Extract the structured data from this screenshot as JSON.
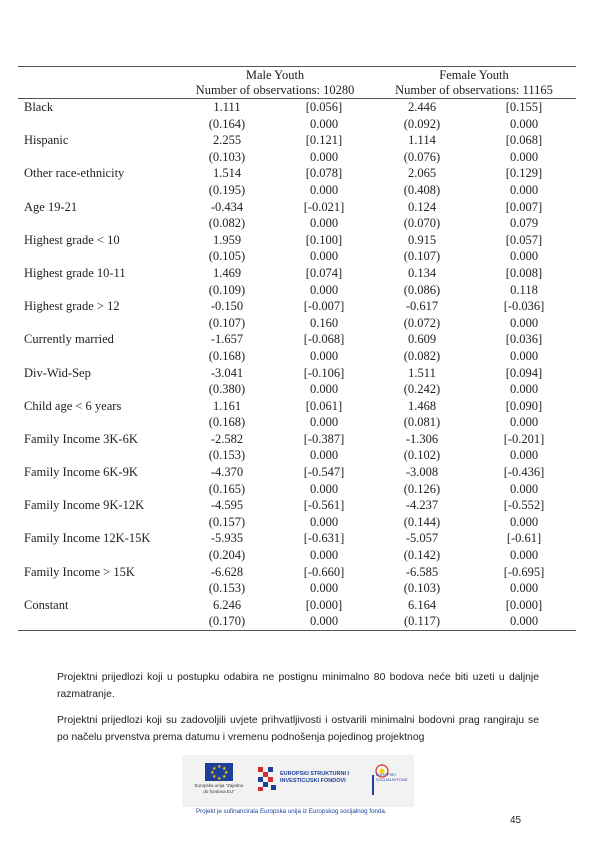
{
  "table": {
    "group_male": "Male Youth",
    "group_female": "Female Youth",
    "obs_male": "Number of observations: 10280",
    "obs_female": "Number of observations: 11165",
    "rows": [
      {
        "label": "Black",
        "m1": "1.111",
        "m2": "[0.056]",
        "f1": "2.446",
        "f2": "[0.155]"
      },
      {
        "label": "",
        "m1": "(0.164)",
        "m2": "0.000",
        "f1": "(0.092)",
        "f2": "0.000"
      },
      {
        "label": "Hispanic",
        "m1": "2.255",
        "m2": "[0.121]",
        "f1": "1.114",
        "f2": "[0.068]"
      },
      {
        "label": "",
        "m1": "(0.103)",
        "m2": "0.000",
        "f1": "(0.076)",
        "f2": "0.000"
      },
      {
        "label": "Other race-ethnicity",
        "m1": "1.514",
        "m2": "[0.078]",
        "f1": "2.065",
        "f2": "[0.129]"
      },
      {
        "label": "",
        "m1": "(0.195)",
        "m2": "0.000",
        "f1": "(0.408)",
        "f2": "0.000"
      },
      {
        "label": "Age 19-21",
        "m1": "-0.434",
        "m2": "[-0.021]",
        "f1": "0.124",
        "f2": "[0.007]"
      },
      {
        "label": "",
        "m1": "(0.082)",
        "m2": "0.000",
        "f1": "(0.070)",
        "f2": "0.079"
      },
      {
        "label": "Highest grade < 10",
        "m1": "1.959",
        "m2": "[0.100]",
        "f1": "0.915",
        "f2": "[0.057]"
      },
      {
        "label": "",
        "m1": "(0.105)",
        "m2": "0.000",
        "f1": "(0.107)",
        "f2": "0.000"
      },
      {
        "label": "Highest grade 10-11",
        "m1": "1.469",
        "m2": "[0.074]",
        "f1": "0.134",
        "f2": "[0.008]"
      },
      {
        "label": "",
        "m1": "(0.109)",
        "m2": "0.000",
        "f1": "(0.086)",
        "f2": "0.118"
      },
      {
        "label": "Highest grade > 12",
        "m1": "-0.150",
        "m2": "[-0.007]",
        "f1": "-0.617",
        "f2": "[-0.036]"
      },
      {
        "label": "",
        "m1": "(0.107)",
        "m2": "0.160",
        "f1": "(0.072)",
        "f2": "0.000"
      },
      {
        "label": "Currently married",
        "m1": "-1.657",
        "m2": "[-0.068]",
        "f1": "0.609",
        "f2": "[0.036]"
      },
      {
        "label": "",
        "m1": "(0.168)",
        "m2": "0.000",
        "f1": "(0.082)",
        "f2": "0.000"
      },
      {
        "label": "Div-Wid-Sep",
        "m1": "-3.041",
        "m2": "[-0.106]",
        "f1": "1.511",
        "f2": "[0.094]"
      },
      {
        "label": "",
        "m1": "(0.380)",
        "m2": "0.000",
        "f1": "(0.242)",
        "f2": "0.000"
      },
      {
        "label": "Child age < 6 years",
        "m1": "1.161",
        "m2": "[0.061]",
        "f1": "1.468",
        "f2": "[0.090]"
      },
      {
        "label": "",
        "m1": "(0.168)",
        "m2": "0.000",
        "f1": "(0.081)",
        "f2": "0.000"
      },
      {
        "label": "Family Income 3K-6K",
        "m1": "-2.582",
        "m2": "[-0.387]",
        "f1": "-1.306",
        "f2": "[-0.201]"
      },
      {
        "label": "",
        "m1": "(0.153)",
        "m2": "0.000",
        "f1": "(0.102)",
        "f2": "0.000"
      },
      {
        "label": "Family Income 6K-9K",
        "m1": "-4.370",
        "m2": "[-0.547]",
        "f1": "-3.008",
        "f2": "[-0.436]"
      },
      {
        "label": "",
        "m1": "(0.165)",
        "m2": "0.000",
        "f1": "(0.126)",
        "f2": "0.000"
      },
      {
        "label": "Family Income 9K-12K",
        "m1": "-4.595",
        "m2": "[-0.561]",
        "f1": "-4.237",
        "f2": "[-0.552]"
      },
      {
        "label": "",
        "m1": "(0.157)",
        "m2": "0.000",
        "f1": "(0.144)",
        "f2": "0.000"
      },
      {
        "label": "Family Income 12K-15K",
        "m1": "-5.935",
        "m2": "[-0.631]",
        "f1": "-5.057",
        "f2": "[-0.61]"
      },
      {
        "label": "",
        "m1": "(0.204)",
        "m2": "0.000",
        "f1": "(0.142)",
        "f2": "0.000"
      },
      {
        "label": "Family Income > 15K",
        "m1": "-6.628",
        "m2": "[-0.660]",
        "f1": "-6.585",
        "f2": "[-0.695]"
      },
      {
        "label": "",
        "m1": "(0.153)",
        "m2": "0.000",
        "f1": "(0.103)",
        "f2": "0.000"
      },
      {
        "label": "Constant",
        "m1": "6.246",
        "m2": "[0.000]",
        "f1": "6.164",
        "f2": "[0.000]"
      },
      {
        "label": "",
        "m1": "(0.170)",
        "m2": "0.000",
        "f1": "(0.117)",
        "f2": "0.000"
      }
    ]
  },
  "paragraphs": {
    "p1": "Projektni prijedlozi koji u postupku odabira ne postignu minimalno 80 bodova neće biti uzeti u daljnje razmatranje.",
    "p2": "Projektni prijedlozi koji su zadovoljili uvjete prihvatljivosti i ostvarili minimalni bodovni prag rangiraju se po načelu prvenstva prema datumu i vremenu podnošenja pojedinog projektnog"
  },
  "footer": {
    "eu_text": "Europska unija \"Zajedno do fondova EU\"",
    "esif_text": "EUROPSKI STRUKTURNI I INVESTICIJSKI FONDOVI",
    "esf_text": "EUROPSKI SOCIJALNI FOND",
    "caption": "Projekt je sufinancirala Europska unija iz Europskog socijalnog fonda.",
    "page_number": "45"
  },
  "colors": {
    "eu_blue": "#1f3f99",
    "eu_gold": "#f5d400",
    "croatia_red": "#d62b2b"
  }
}
